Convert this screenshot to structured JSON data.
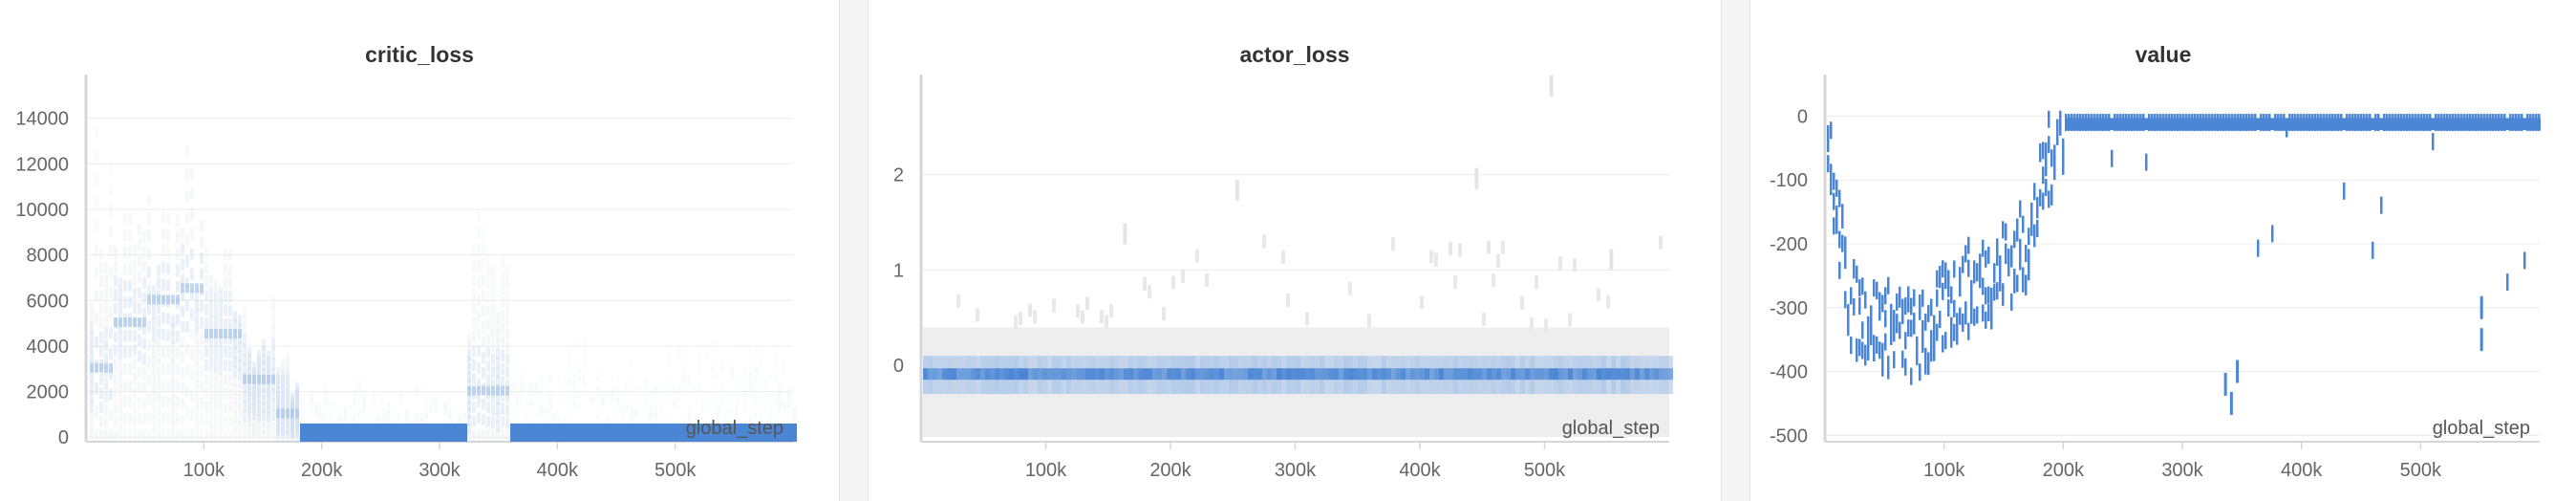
{
  "colors": {
    "series": "#4a86d4",
    "faint": "#dfe7f1",
    "grid": "#ececec",
    "axis": "#d6d6d6"
  },
  "chart_data": [
    {
      "type": "heatmap",
      "title": "critic_loss",
      "xlabel": "global_step",
      "xlim": [
        0,
        600000
      ],
      "ylim": [
        -200,
        15500
      ],
      "x_ticks": [
        100000,
        200000,
        300000,
        400000,
        500000
      ],
      "x_tick_labels": [
        "100k",
        "200k",
        "300k",
        "400k",
        "500k"
      ],
      "y_ticks": [
        0,
        2000,
        4000,
        6000,
        8000,
        10000,
        12000,
        14000
      ],
      "y_tick_labels": [
        "0",
        "2000",
        "4000",
        "6000",
        "8000",
        "10000",
        "12000",
        "14000"
      ],
      "grid": true,
      "series": [
        {
          "step_bins": [
            {
              "x_start": 0,
              "x_end": 20000,
              "median": 3000,
              "spread_max": 15000
            },
            {
              "x_start": 20000,
              "x_end": 50000,
              "median": 5000,
              "spread_max": 12000
            },
            {
              "x_start": 50000,
              "x_end": 80000,
              "median": 6000,
              "spread_max": 12500
            },
            {
              "x_start": 80000,
              "x_end": 100000,
              "median": 6500,
              "spread_max": 14000
            },
            {
              "x_start": 100000,
              "x_end": 130000,
              "median": 4500,
              "spread_max": 9000
            },
            {
              "x_start": 130000,
              "x_end": 160000,
              "median": 2500,
              "spread_max": 6500
            },
            {
              "x_start": 160000,
              "x_end": 180000,
              "median": 1000,
              "spread_max": 4000
            },
            {
              "x_start": 180000,
              "x_end": 320000,
              "median": 0,
              "spread_max": 2500
            },
            {
              "x_start": 320000,
              "x_end": 360000,
              "median": 2000,
              "spread_max": 10500
            },
            {
              "x_start": 360000,
              "x_end": 600000,
              "median": 0,
              "spread_max": 4500
            }
          ]
        }
      ]
    },
    {
      "type": "heatmap",
      "title": "actor_loss",
      "xlabel": "global_step",
      "xlim": [
        0,
        600000
      ],
      "ylim": [
        -0.8,
        2.95
      ],
      "x_ticks": [
        100000,
        200000,
        300000,
        400000,
        500000
      ],
      "x_tick_labels": [
        "100k",
        "200k",
        "300k",
        "400k",
        "500k"
      ],
      "y_ticks": [
        0,
        1,
        2
      ],
      "y_tick_labels": [
        "0",
        "1",
        "2"
      ],
      "grid": true,
      "series": [
        {
          "step_bins": [
            {
              "x_start": 0,
              "x_end": 600000,
              "median": -0.08,
              "band": [
                -0.3,
                0.1
              ],
              "spread": [
                -0.75,
                0.4
              ]
            }
          ]
        }
      ]
    },
    {
      "type": "heatmap",
      "title": "value",
      "xlabel": "global_step",
      "xlim": [
        0,
        600000
      ],
      "ylim": [
        -510,
        50
      ],
      "x_ticks": [
        100000,
        200000,
        300000,
        400000,
        500000
      ],
      "x_tick_labels": [
        "100k",
        "200k",
        "300k",
        "400k",
        "500k"
      ],
      "y_ticks": [
        0,
        -100,
        -200,
        -300,
        -400,
        -500
      ],
      "y_tick_labels": [
        "0",
        "-100",
        "-200",
        "-300",
        "-400",
        "-500"
      ],
      "grid": true,
      "series": [
        {
          "trend_points": [
            {
              "x": 0,
              "y": -10
            },
            {
              "x": 5000,
              "y": -100
            },
            {
              "x": 20000,
              "y": -300
            },
            {
              "x": 50000,
              "y": -330
            },
            {
              "x": 80000,
              "y": -350
            },
            {
              "x": 110000,
              "y": -280
            },
            {
              "x": 140000,
              "y": -250
            },
            {
              "x": 170000,
              "y": -200
            },
            {
              "x": 185000,
              "y": -80
            },
            {
              "x": 200000,
              "y": -10
            },
            {
              "x": 600000,
              "y": -10
            }
          ]
        }
      ]
    }
  ]
}
